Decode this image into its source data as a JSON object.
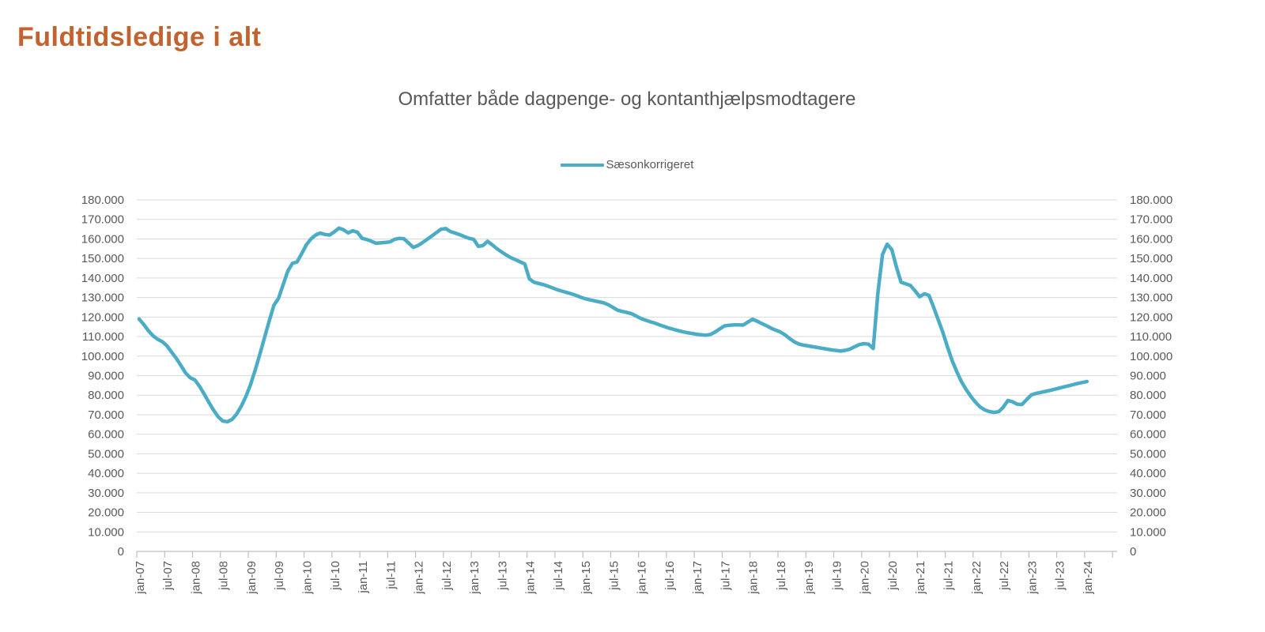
{
  "page": {
    "title": "Fuldtidsledige i alt"
  },
  "colors": {
    "title": "#C2622E",
    "axis_text": "#595959",
    "gridline": "#D9D9D9",
    "axis_line": "#BFBFBF",
    "series_line": "#4BACC6"
  },
  "chart_data": {
    "type": "line",
    "title": "Omfatter både dagpenge- og kontanthjælpsmodtagere",
    "legend_position": "top-center",
    "grid": true,
    "x_frequency": "monthly",
    "x_start": "jan-07",
    "x_end": "jan-24",
    "x_tick_interval_months": 6,
    "x_tick_labels": [
      "jan-07",
      "jul-07",
      "jan-08",
      "jul-08",
      "jan-09",
      "jul-09",
      "jan-10",
      "jul-10",
      "jan-11",
      "jul-11",
      "jan-12",
      "jul-12",
      "jan-13",
      "jul-13",
      "jan-14",
      "jul-14",
      "jan-15",
      "jul-15",
      "jan-16",
      "jul-16",
      "jan-17",
      "jul-17",
      "jan-18",
      "jul-18",
      "jan-19",
      "jul-19",
      "jan-20",
      "jul-20",
      "jan-21",
      "jul-21",
      "jan-22",
      "jul-22",
      "jan-23",
      "jul-23",
      "jan-24"
    ],
    "y_axis": {
      "min": 0,
      "max": 180000,
      "step": 10000,
      "sides": "both",
      "tick_labels": [
        "0",
        "10.000",
        "20.000",
        "30.000",
        "40.000",
        "50.000",
        "60.000",
        "70.000",
        "80.000",
        "90.000",
        "100.000",
        "110.000",
        "120.000",
        "130.000",
        "140.000",
        "150.000",
        "160.000",
        "170.000",
        "180.000"
      ]
    },
    "series": [
      {
        "name": "Sæsonkorrigeret",
        "color": "#4BACC6",
        "values": [
          119000,
          116200,
          113000,
          110400,
          108600,
          107400,
          105200,
          102000,
          98800,
          95200,
          91400,
          88900,
          87800,
          84600,
          80600,
          76400,
          72400,
          69000,
          66800,
          66400,
          67600,
          70400,
          74400,
          79400,
          85500,
          93000,
          101000,
          109500,
          118000,
          126000,
          129500,
          136500,
          143500,
          147500,
          148200,
          152500,
          157000,
          160000,
          162000,
          163000,
          162300,
          162000,
          163600,
          165500,
          164700,
          163100,
          164200,
          163400,
          160300,
          159700,
          158800,
          157800,
          158000,
          158200,
          158500,
          159800,
          160300,
          160100,
          157900,
          155700,
          156600,
          158100,
          159800,
          161500,
          163300,
          165000,
          165300,
          163800,
          163000,
          162200,
          161200,
          160300,
          159800,
          156200,
          156600,
          158800,
          157000,
          155000,
          153400,
          151800,
          150400,
          149400,
          148300,
          147200,
          139500,
          137800,
          137200,
          136600,
          135800,
          134900,
          134000,
          133300,
          132600,
          131900,
          131100,
          130200,
          129400,
          128800,
          128300,
          127800,
          127300,
          126300,
          124900,
          123500,
          122900,
          122300,
          121700,
          120500,
          119300,
          118400,
          117600,
          116900,
          116000,
          115200,
          114400,
          113700,
          113100,
          112500,
          112000,
          111600,
          111200,
          110900,
          110700,
          111100,
          112400,
          114000,
          115500,
          115800,
          116000,
          116000,
          115900,
          117400,
          118900,
          117900,
          116700,
          115600,
          114300,
          113300,
          112400,
          110900,
          109000,
          107300,
          106200,
          105600,
          105200,
          104800,
          104400,
          104000,
          103600,
          103200,
          102900,
          102600,
          103000,
          103600,
          104800,
          105900,
          106400,
          106100,
          103900,
          132000,
          152000,
          157300,
          154500,
          145500,
          137800,
          137000,
          136200,
          133400,
          130400,
          131900,
          131100,
          125000,
          118600,
          112100,
          104600,
          97600,
          91900,
          86900,
          82900,
          79400,
          76400,
          74000,
          72500,
          71600,
          71200,
          71500,
          73900,
          77300,
          76600,
          75400,
          75200,
          77700,
          80100,
          80900,
          81400,
          81900,
          82400,
          83000,
          83600,
          84200,
          84800,
          85400,
          86000,
          86500,
          87000
        ]
      }
    ]
  }
}
